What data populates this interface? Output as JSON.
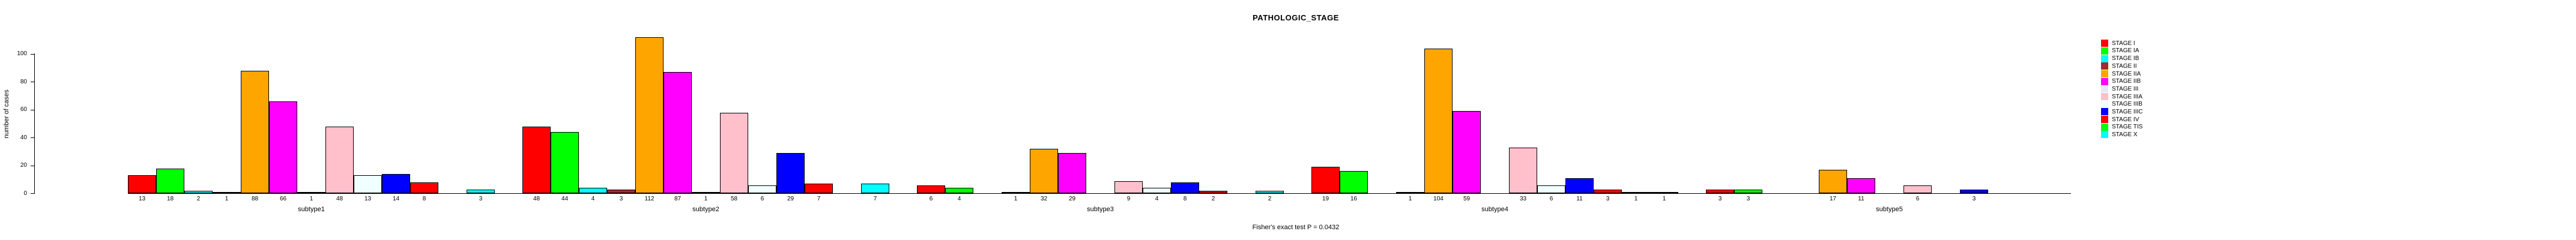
{
  "title": "PATHOLOGIC_STAGE",
  "caption": "Fisher's exact test P = 0.0432",
  "y_axis": {
    "label": "number of cases",
    "tick_labels": [
      "0",
      "20",
      "40",
      "60",
      "80",
      "100"
    ]
  },
  "colors": {
    "background": "#FFFFFF",
    "axis": "#000000",
    "bar_border": "#000000"
  },
  "chart_data": {
    "type": "bar",
    "title": "PATHOLOGIC_STAGE",
    "xlabel": "",
    "ylabel": "number of cases",
    "ylim": [
      0,
      100
    ],
    "yticks": [
      0,
      20,
      40,
      60,
      80,
      100
    ],
    "grid": false,
    "legend_position": "right",
    "bar_value_labels": true,
    "annotation": "Fisher's exact test P = 0.0432",
    "categories": [
      "subtype1",
      "subtype2",
      "subtype3",
      "subtype4",
      "subtype5"
    ],
    "series": [
      {
        "name": "STAGE I",
        "color": "#FF0000",
        "values": [
          13,
          48,
          6,
          19,
          3
        ]
      },
      {
        "name": "STAGE IA",
        "color": "#00FF00",
        "values": [
          18,
          44,
          4,
          16,
          3
        ]
      },
      {
        "name": "STAGE IB",
        "color": "#00FFFF",
        "values": [
          2,
          4,
          0,
          0,
          0
        ]
      },
      {
        "name": "STAGE II",
        "color": "#A52A2A",
        "values": [
          1,
          3,
          1,
          1,
          0
        ]
      },
      {
        "name": "STAGE IIA",
        "color": "#FFA500",
        "values": [
          88,
          112,
          32,
          104,
          17
        ]
      },
      {
        "name": "STAGE IIB",
        "color": "#FF00FF",
        "values": [
          66,
          87,
          29,
          59,
          11
        ]
      },
      {
        "name": "STAGE III",
        "color": "#E6E6FA",
        "values": [
          1,
          1,
          0,
          0,
          0
        ]
      },
      {
        "name": "STAGE IIIA",
        "color": "#FFC0CB",
        "values": [
          48,
          58,
          9,
          33,
          6
        ]
      },
      {
        "name": "STAGE IIIB",
        "color": "#F0FFFF",
        "values": [
          13,
          6,
          4,
          6,
          0
        ]
      },
      {
        "name": "STAGE IIIC",
        "color": "#0000FF",
        "values": [
          14,
          29,
          8,
          11,
          3
        ]
      },
      {
        "name": "STAGE IV",
        "color": "#FF0000",
        "values": [
          8,
          7,
          2,
          3,
          0
        ]
      },
      {
        "name": "STAGE TIS",
        "color": "#00FF00",
        "values": [
          0,
          0,
          0,
          1,
          0
        ]
      },
      {
        "name": "STAGE X",
        "color": "#00FFFF",
        "values": [
          3,
          7,
          2,
          1,
          0
        ]
      }
    ]
  }
}
